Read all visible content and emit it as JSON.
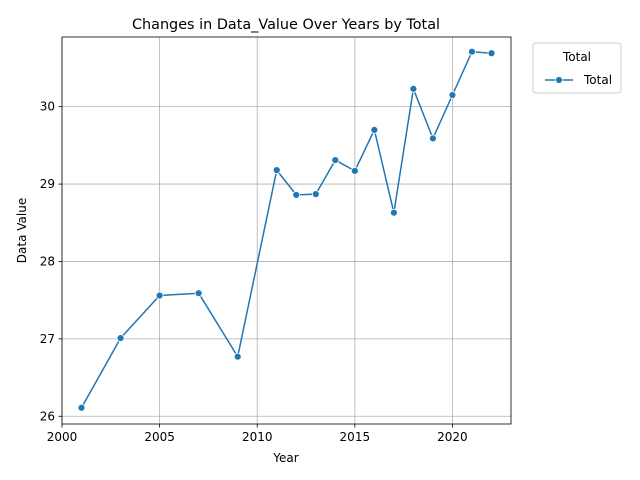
{
  "chart_data": {
    "type": "line",
    "title": "Changes in Data_Value Over Years by Total",
    "xlabel": "Year",
    "ylabel": "Data Value",
    "xlim": [
      2000,
      2023
    ],
    "ylim": [
      25.9,
      30.9
    ],
    "x_ticks": [
      2000,
      2005,
      2010,
      2015,
      2020
    ],
    "y_ticks": [
      26,
      27,
      28,
      29,
      30
    ],
    "grid": true,
    "legend": {
      "title": "Total",
      "position": "upper-right-outside"
    },
    "series": [
      {
        "name": "Total",
        "color": "#1f77b4",
        "marker": "circle",
        "x": [
          2001,
          2003,
          2005,
          2007,
          2009,
          2011,
          2012,
          2013,
          2014,
          2015,
          2016,
          2017,
          2018,
          2019,
          2020,
          2021,
          2022
        ],
        "y": [
          26.11,
          27.01,
          27.56,
          27.59,
          26.77,
          29.18,
          28.86,
          28.87,
          29.31,
          29.17,
          29.7,
          28.63,
          30.23,
          29.59,
          30.15,
          30.71,
          30.69
        ]
      }
    ]
  }
}
